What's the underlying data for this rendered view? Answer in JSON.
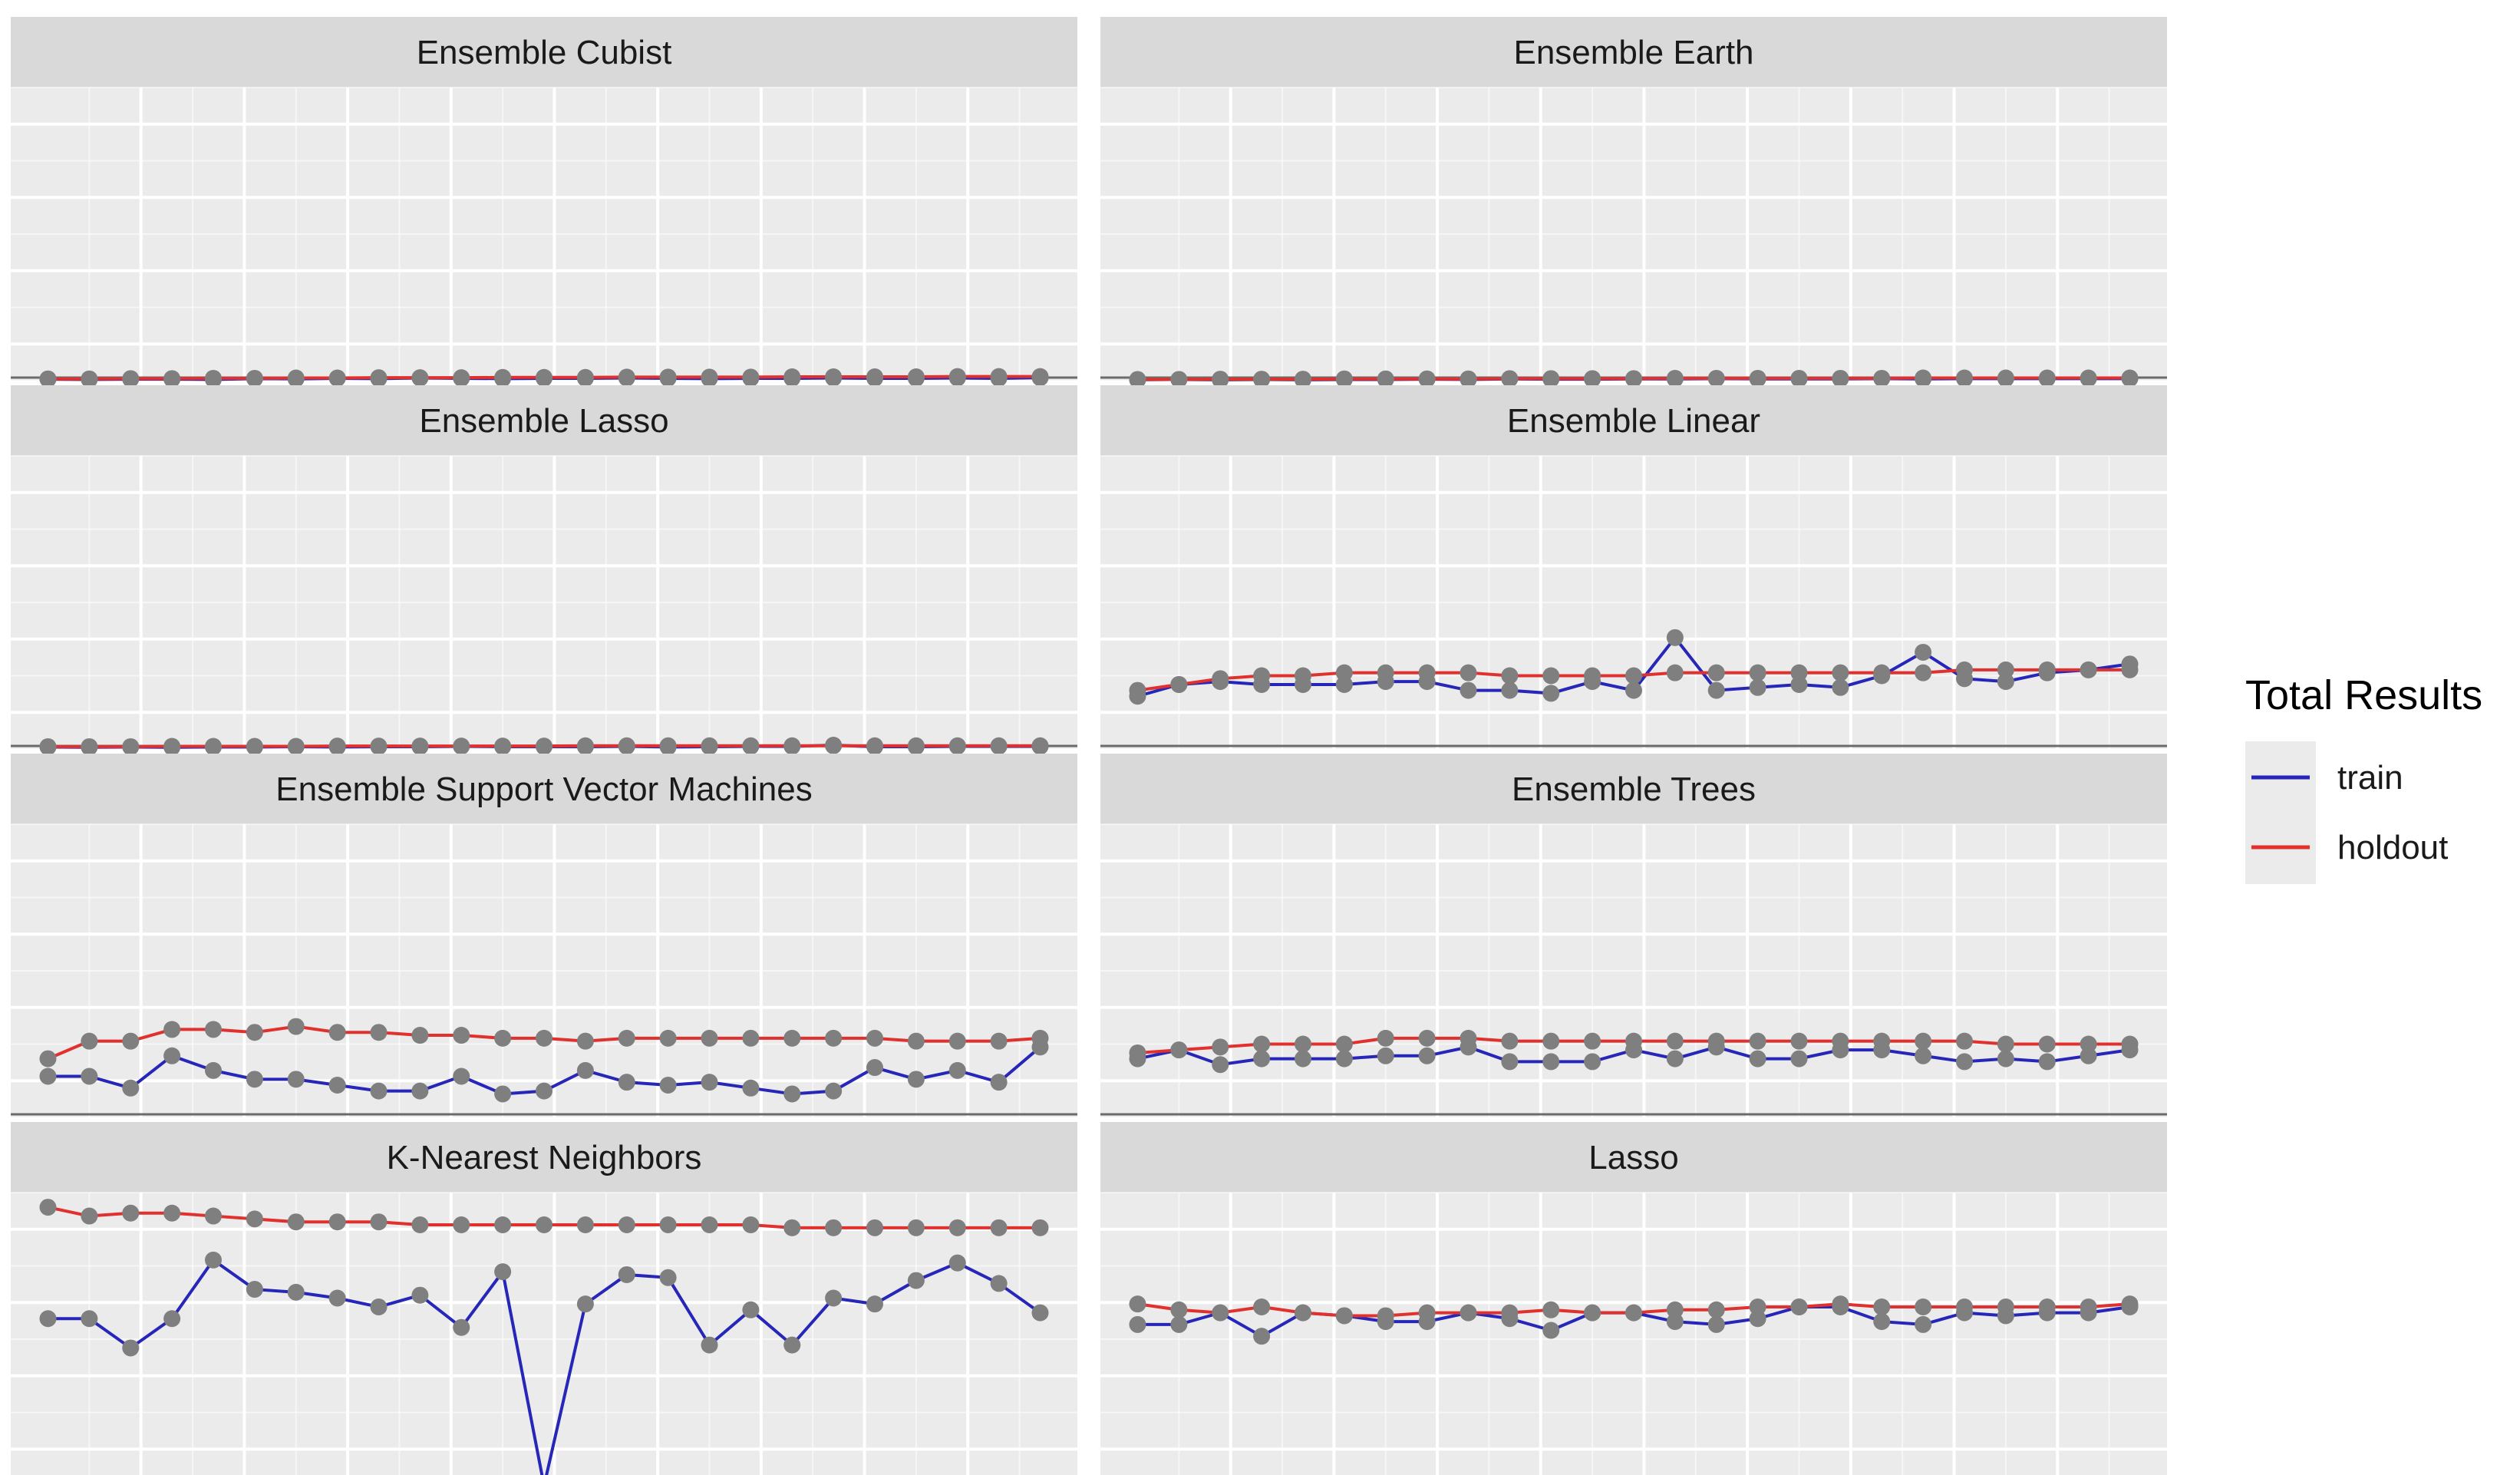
{
  "legend": {
    "title": "Total Results",
    "entries": [
      {
        "label": "train",
        "color": "#2626b8"
      },
      {
        "label": "holdout",
        "color": "#e0312e"
      }
    ]
  },
  "colors": {
    "panel_background": "#ebebeb",
    "strip_background": "#d9d9d9",
    "grid": "#ffffff",
    "point": "#7f7f7f",
    "axis_line": "#6b6b6b"
  },
  "chart_data": {
    "type": "line",
    "facet_layout": "2 columns x 4 rows",
    "grid": true,
    "legend_position": "right",
    "xlabel": "",
    "ylabel": "",
    "x": [
      1,
      2,
      3,
      4,
      5,
      6,
      7,
      8,
      9,
      10,
      11,
      12,
      13,
      14,
      15,
      16,
      17,
      18,
      19,
      20,
      21,
      22,
      23,
      24,
      25
    ],
    "xlim": [
      0.1,
      25.9
    ],
    "ylim": [
      0,
      100
    ],
    "panels": [
      {
        "title": "Ensemble Cubist",
        "series": [
          {
            "name": "train",
            "values": [
              0.5,
              0.4,
              0.5,
              0.5,
              0.4,
              0.7,
              0.6,
              0.8,
              0.7,
              0.9,
              0.8,
              0.7,
              0.8,
              0.8,
              0.9,
              0.8,
              0.7,
              0.8,
              0.8,
              0.9,
              0.8,
              0.8,
              0.9,
              0.8,
              1.0
            ]
          },
          {
            "name": "holdout",
            "values": [
              0.6,
              0.6,
              0.7,
              0.7,
              0.8,
              0.8,
              0.9,
              0.9,
              1.0,
              1.0,
              1.0,
              1.1,
              1.1,
              1.1,
              1.2,
              1.2,
              1.2,
              1.2,
              1.3,
              1.3,
              1.3,
              1.3,
              1.4,
              1.4,
              1.4
            ]
          }
        ]
      },
      {
        "title": "Ensemble Earth",
        "series": [
          {
            "name": "train",
            "values": [
              0.3,
              0.4,
              0.3,
              0.4,
              0.3,
              0.4,
              0.4,
              0.5,
              0.4,
              0.6,
              0.5,
              0.5,
              0.6,
              0.6,
              0.7,
              0.6,
              0.6,
              0.6,
              0.7,
              0.6,
              0.7,
              0.7,
              0.7,
              0.7,
              0.7
            ]
          },
          {
            "name": "holdout",
            "values": [
              0.4,
              0.4,
              0.5,
              0.5,
              0.5,
              0.6,
              0.6,
              0.6,
              0.6,
              0.7,
              0.7,
              0.7,
              0.7,
              0.8,
              0.8,
              0.8,
              0.8,
              0.8,
              0.8,
              0.9,
              0.9,
              0.9,
              0.9,
              0.9,
              0.9
            ]
          }
        ]
      },
      {
        "title": "Ensemble Lasso",
        "series": [
          {
            "name": "train",
            "values": [
              0.7,
              0.6,
              0.7,
              0.6,
              0.7,
              0.7,
              0.8,
              0.7,
              0.8,
              0.8,
              0.9,
              0.8,
              0.8,
              0.8,
              0.9,
              0.7,
              0.8,
              0.9,
              0.9,
              1.3,
              0.8,
              0.8,
              0.9,
              0.9,
              0.9
            ]
          },
          {
            "name": "holdout",
            "values": [
              0.8,
              0.8,
              0.8,
              0.9,
              0.9,
              0.9,
              0.9,
              1.0,
              1.0,
              1.0,
              1.0,
              1.0,
              1.0,
              1.1,
              1.1,
              1.1,
              1.1,
              1.1,
              1.1,
              1.1,
              1.1,
              1.1,
              1.1,
              1.1,
              1.1
            ]
          }
        ]
      },
      {
        "title": "Ensemble Linear",
        "series": [
          {
            "name": "train",
            "values": [
              18,
              22,
              23,
              22,
              22,
              22,
              23,
              23,
              20,
              20,
              19,
              23,
              20,
              38,
              20,
              21,
              22,
              21,
              25,
              33,
              24,
              23,
              26,
              27,
              29
            ]
          },
          {
            "name": "holdout",
            "values": [
              20,
              22,
              24,
              25,
              25,
              26,
              26,
              26,
              26,
              25,
              25,
              25,
              25,
              26,
              26,
              26,
              26,
              26,
              26,
              26,
              27,
              27,
              27,
              27,
              27
            ]
          }
        ]
      },
      {
        "title": "Ensemble Support Vector Machines",
        "series": [
          {
            "name": "train",
            "values": [
              14,
              14,
              10,
              21,
              16,
              13,
              13,
              11,
              9,
              9,
              14,
              8,
              9,
              16,
              12,
              11,
              12,
              10,
              8,
              9,
              17,
              13,
              16,
              12,
              24
            ]
          },
          {
            "name": "holdout",
            "values": [
              20,
              26,
              26,
              30,
              30,
              29,
              31,
              29,
              29,
              28,
              28,
              27,
              27,
              26,
              27,
              27,
              27,
              27,
              27,
              27,
              27,
              26,
              26,
              26,
              27
            ]
          }
        ]
      },
      {
        "title": "Ensemble Trees",
        "series": [
          {
            "name": "train",
            "values": [
              20,
              23,
              18,
              20,
              20,
              20,
              21,
              21,
              24,
              19,
              19,
              19,
              23,
              20,
              24,
              20,
              20,
              23,
              23,
              21,
              19,
              20,
              19,
              21,
              23
            ]
          },
          {
            "name": "holdout",
            "values": [
              22,
              23,
              24,
              25,
              25,
              25,
              27,
              27,
              27,
              26,
              26,
              26,
              26,
              26,
              26,
              26,
              26,
              26,
              26,
              26,
              26,
              25,
              25,
              25,
              25
            ]
          }
        ]
      },
      {
        "title": "K-Nearest Neighbors",
        "series": [
          {
            "name": "train",
            "values": [
              57,
              57,
              47,
              57,
              77,
              67,
              66,
              64,
              61,
              65,
              54,
              73,
              0,
              62,
              72,
              71,
              48,
              60,
              48,
              64,
              62,
              70,
              76,
              69,
              59
            ]
          },
          {
            "name": "holdout",
            "values": [
              95,
              92,
              93,
              93,
              92,
              91,
              90,
              90,
              90,
              89,
              89,
              89,
              89,
              89,
              89,
              89,
              89,
              89,
              88,
              88,
              88,
              88,
              88,
              88,
              88
            ]
          }
        ]
      },
      {
        "title": "Lasso",
        "series": [
          {
            "name": "train",
            "values": [
              55,
              55,
              59,
              51,
              59,
              58,
              56,
              56,
              59,
              57,
              53,
              59,
              59,
              56,
              55,
              57,
              61,
              61,
              56,
              55,
              59,
              58,
              59,
              59,
              61
            ]
          },
          {
            "name": "holdout",
            "values": [
              62,
              60,
              59,
              61,
              59,
              58,
              58,
              59,
              59,
              59,
              60,
              59,
              59,
              60,
              60,
              61,
              61,
              62,
              61,
              61,
              61,
              61,
              61,
              61,
              62
            ]
          }
        ]
      }
    ]
  }
}
